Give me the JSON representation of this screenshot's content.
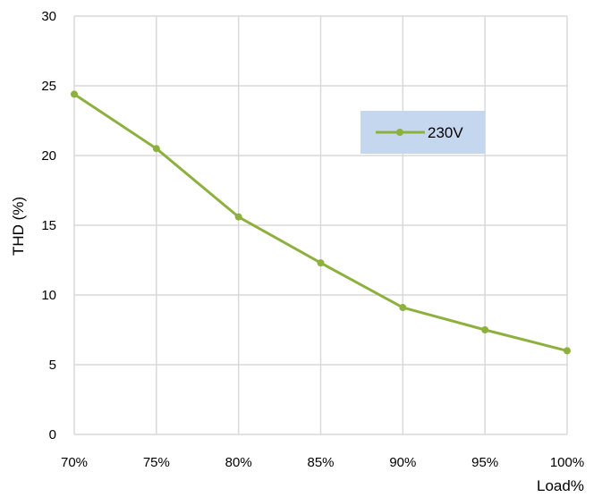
{
  "chart_data": {
    "type": "line",
    "categories": [
      "70%",
      "75%",
      "80%",
      "85%",
      "90%",
      "95%",
      "100%"
    ],
    "series": [
      {
        "name": "230V",
        "values": [
          24.4,
          20.5,
          15.6,
          12.3,
          9.1,
          7.5,
          6.0
        ],
        "color": "#8db03f"
      }
    ],
    "xlabel": "Load%",
    "ylabel": "THD (%)",
    "ylim": [
      0,
      30
    ],
    "yticks": [
      0,
      5,
      10,
      15,
      20,
      25,
      30
    ],
    "grid": true,
    "legend_position": "top-right",
    "legend_bg": "#c5d7ef"
  }
}
